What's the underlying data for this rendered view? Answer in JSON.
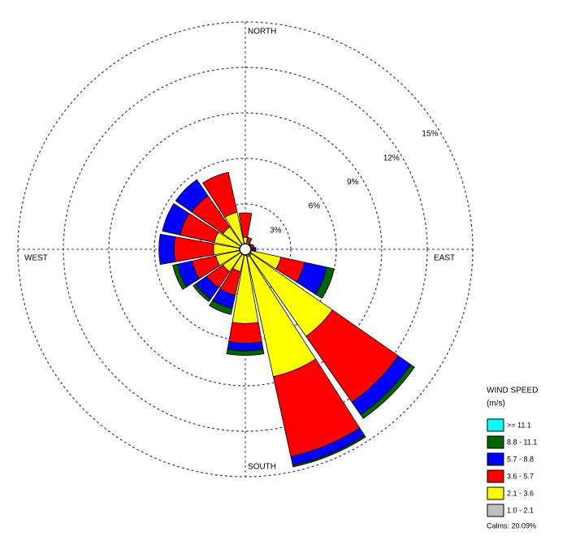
{
  "chart_data": {
    "type": "windrose",
    "categories": [
      "NORTH",
      null,
      null,
      null,
      "EAST",
      null,
      null,
      null,
      "SOUTH",
      null,
      null,
      null,
      "WEST",
      null,
      null,
      null
    ],
    "rlim": [
      0,
      15
    ],
    "rticks": [
      {
        "value": 3,
        "label": "3%"
      },
      {
        "value": 6,
        "label": "6%"
      },
      {
        "value": 9,
        "label": "9%"
      },
      {
        "value": 12,
        "label": "12%"
      },
      {
        "value": 15,
        "label": "15%"
      }
    ],
    "legend_title": "WIND SPEED",
    "legend_unit": "(m/s)",
    "calms": "Calms: 20.09%",
    "legend_position": "lower right",
    "series": [
      {
        "name": "1.0 - 2.1",
        "color": "#c0c0c0",
        "values": [
          0.3,
          0.3,
          0.2,
          0.2,
          0.2,
          0.3,
          0.5,
          0.5,
          0.4,
          0.3,
          0.3,
          0.3,
          0.3,
          0.3,
          0.3,
          0.3
        ]
      },
      {
        "name": "2.1 - 3.6",
        "color": "#ffff00",
        "values": [
          0.5,
          0.2,
          0.1,
          0.2,
          0.2,
          2.1,
          6.5,
          8.1,
          4.5,
          1.2,
          1.5,
          1.7,
          1.8,
          1.8,
          1.5,
          2.2
        ]
      },
      {
        "name": "3.6 - 5.7",
        "color": "#ff0000",
        "values": [
          1.6,
          0.3,
          0.2,
          0.2,
          0.1,
          1.6,
          5.3,
          5.4,
          1.3,
          1.6,
          1.3,
          1.6,
          2.6,
          2.3,
          2.5,
          2.7
        ]
      },
      {
        "name": "5.7 - 8.8",
        "color": "#0000ff",
        "values": [
          0,
          0,
          0,
          0,
          0.2,
          1.5,
          1.0,
          0.6,
          0.5,
          0.9,
          0.9,
          1.0,
          1.0,
          1.2,
          1.3,
          0
        ]
      },
      {
        "name": "8.8 - 11.1",
        "color": "#006400",
        "values": [
          0,
          0,
          0,
          0,
          0,
          0.5,
          0.3,
          0.1,
          0.3,
          0.4,
          0.2,
          0.3,
          0,
          0,
          0,
          0
        ]
      },
      {
        "name": ">= 11.1",
        "color": "#00ffff",
        "values": [
          0,
          0,
          0,
          0,
          0,
          0,
          0,
          0,
          0,
          0,
          0,
          0,
          0,
          0,
          0,
          0
        ]
      }
    ]
  }
}
